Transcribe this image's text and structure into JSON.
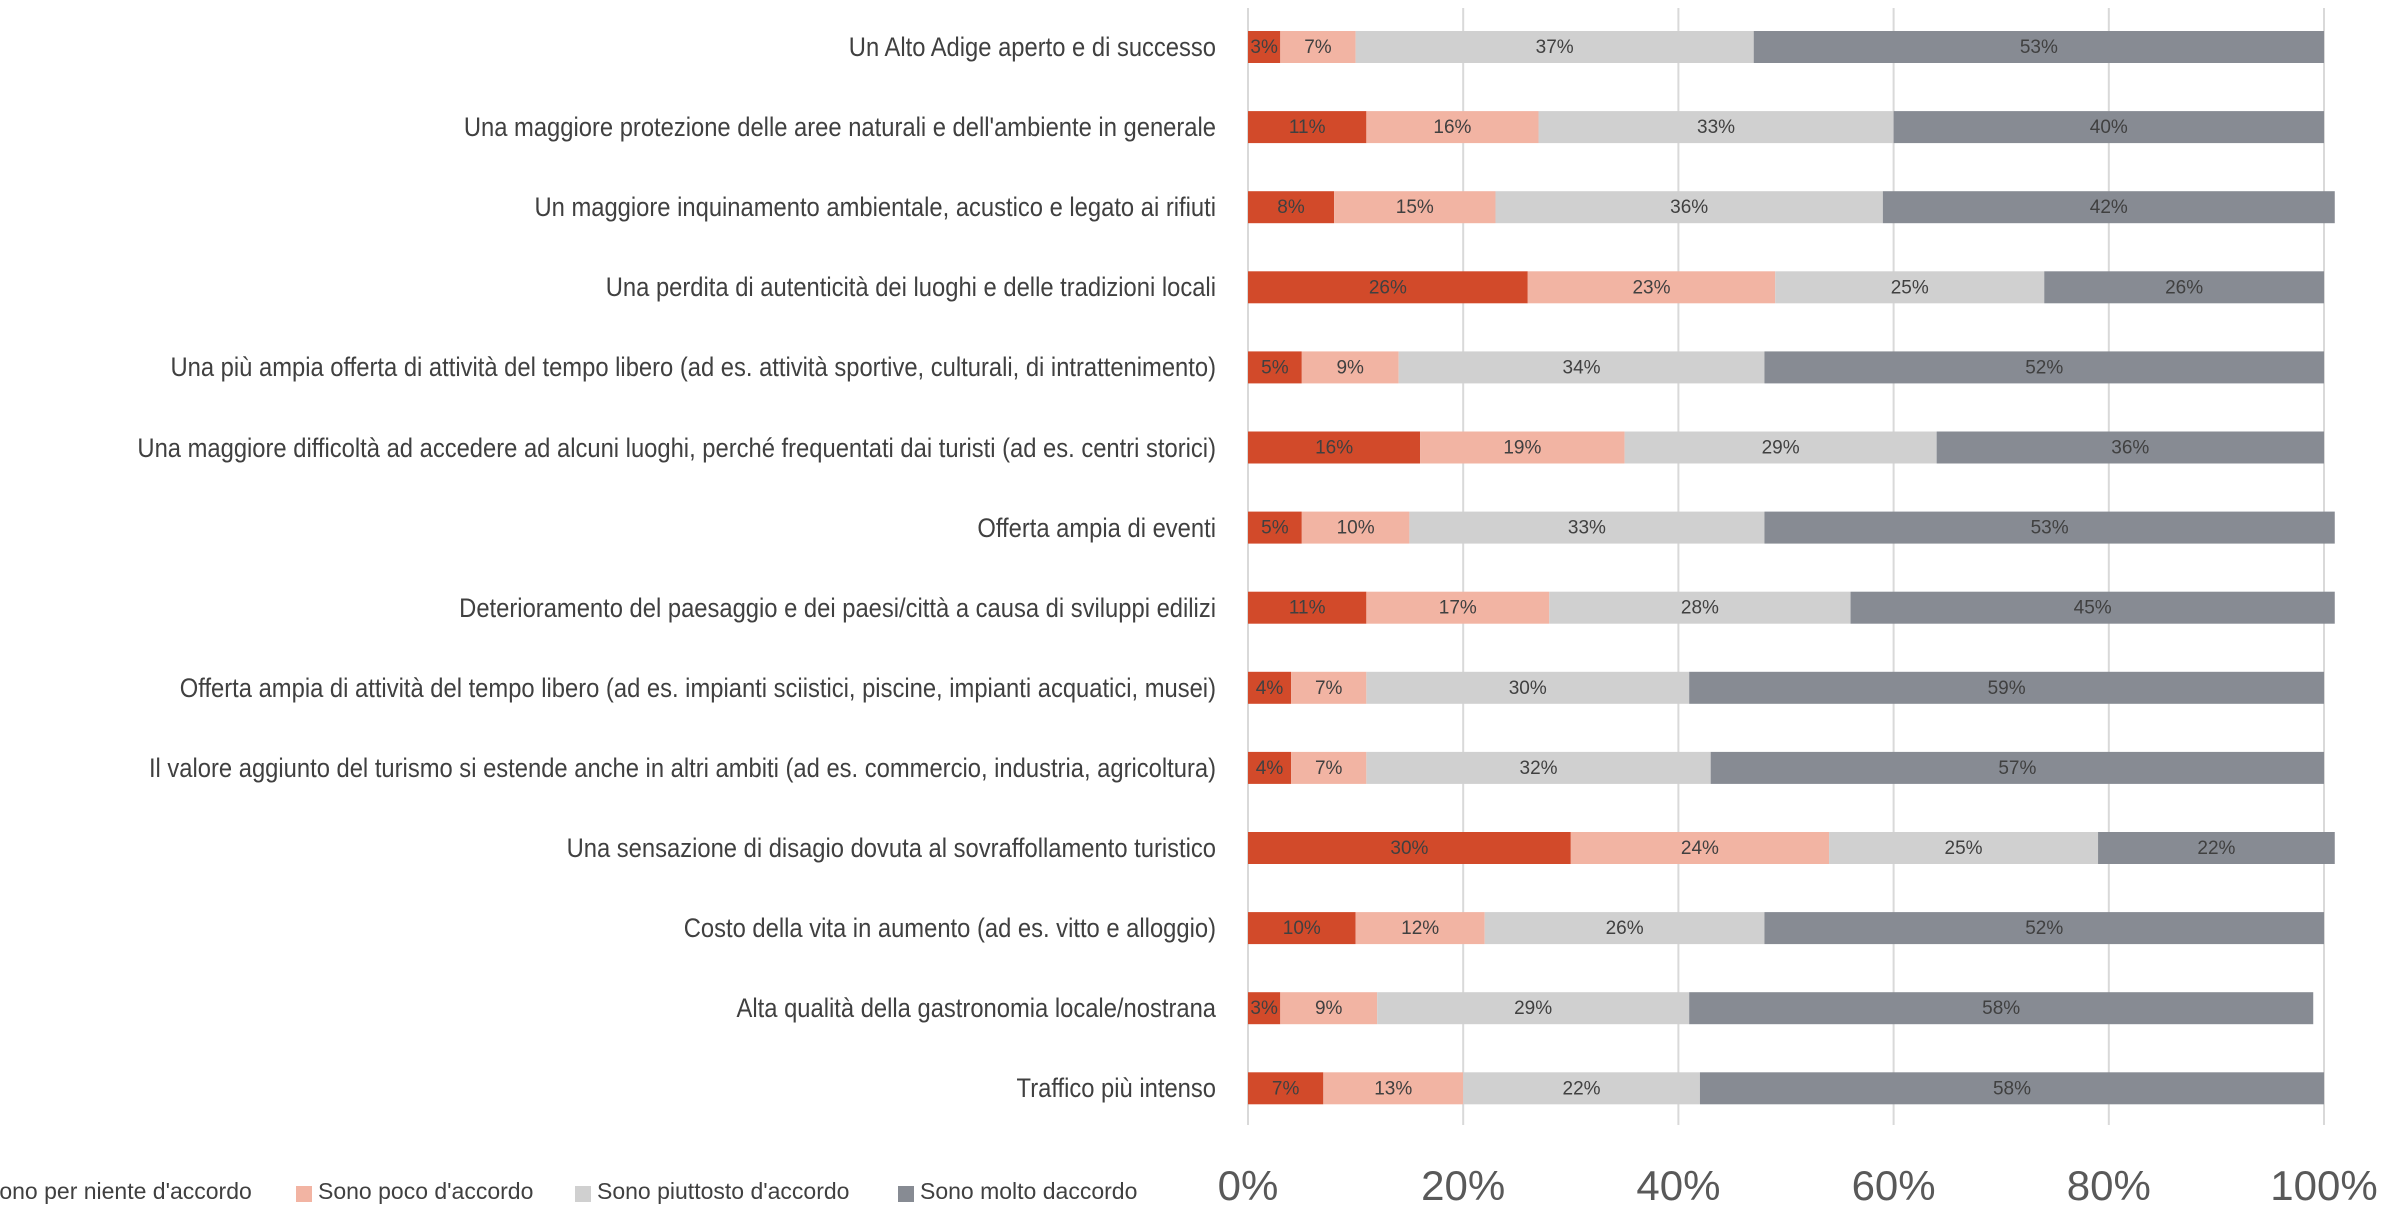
{
  "chart_data": {
    "type": "stacked_barh",
    "categories": [
      "Un Alto Adige aperto e di successo",
      "Una maggiore protezione delle aree naturali e dell'ambiente in generale",
      "Un maggiore inquinamento ambientale, acustico e legato ai rifiuti",
      "Una perdita di autenticità dei luoghi e delle tradizioni locali",
      "Una più ampia offerta di attività del tempo libero (ad es. attività sportive, culturali, di intrattenimento)",
      "Una maggiore difficoltà ad accedere ad alcuni luoghi, perché frequentati dai turisti (ad es. centri storici)",
      "Offerta ampia di eventi",
      "Deterioramento del paesaggio e dei paesi/città a causa di sviluppi edilizi",
      "Offerta ampia di attività del tempo libero (ad es. impianti sciistici, piscine, impianti acquatici, musei)",
      "Il valore aggiunto del turismo si estende anche in altri ambiti (ad es. commercio, industria, agricoltura)",
      "Una sensazione di disagio dovuta al sovraffollamento turistico",
      "Costo della vita in aumento (ad es. vitto e alloggio)",
      "Alta qualità della gastronomia locale/nostrana",
      "Traffico più intenso"
    ],
    "series": [
      {
        "name": "Sono per niente d'accordo",
        "color": "#d24a2a",
        "values": [
          3,
          11,
          8,
          26,
          5,
          16,
          5,
          11,
          4,
          4,
          30,
          10,
          3,
          7
        ],
        "value_labels": [
          "3%",
          "11%",
          "8%",
          "26%",
          "5%",
          "16%",
          "5%",
          "11%",
          "4%",
          "4%",
          "30%",
          "10%",
          "3%",
          "7%"
        ]
      },
      {
        "name": "Sono poco d'accordo",
        "color": "#f2b4a3",
        "values": [
          7,
          16,
          15,
          23,
          9,
          19,
          10,
          17,
          7,
          7,
          24,
          12,
          9,
          13
        ],
        "value_labels": [
          "7%",
          "16%",
          "15%",
          "23%",
          "9%",
          "19%",
          "10%",
          "17%",
          "7%",
          "7%",
          "24%",
          "12%",
          "9%",
          "13%"
        ]
      },
      {
        "name": "Sono piuttosto d'accordo",
        "color": "#d0d0d0",
        "values": [
          37,
          33,
          36,
          25,
          34,
          29,
          33,
          28,
          30,
          32,
          25,
          26,
          29,
          22
        ],
        "value_labels": [
          "37%",
          "33%",
          "36%",
          "25%",
          "34%",
          "29%",
          "33%",
          "28%",
          "30%",
          "32%",
          "25%",
          "26%",
          "29%",
          "22%"
        ]
      },
      {
        "name": "Sono molto daccordo",
        "color": "#878b93",
        "values": [
          53,
          40,
          42,
          26,
          52,
          36,
          53,
          45,
          59,
          57,
          22,
          52,
          58,
          58
        ],
        "value_labels": [
          "53%",
          "40%",
          "42%",
          "26%",
          "52%",
          "36%",
          "53%",
          "45%",
          "59%",
          "57%",
          "22%",
          "52%",
          "58%",
          "58%"
        ]
      }
    ],
    "xlim": [
      0,
      100
    ],
    "xticks": [
      {
        "value": 0,
        "label": "0%"
      },
      {
        "value": 20,
        "label": "20%"
      },
      {
        "value": 40,
        "label": "40%"
      },
      {
        "value": 60,
        "label": "60%"
      },
      {
        "value": 80,
        "label": "80%"
      },
      {
        "value": 100,
        "label": "100%"
      }
    ],
    "grid": true
  }
}
